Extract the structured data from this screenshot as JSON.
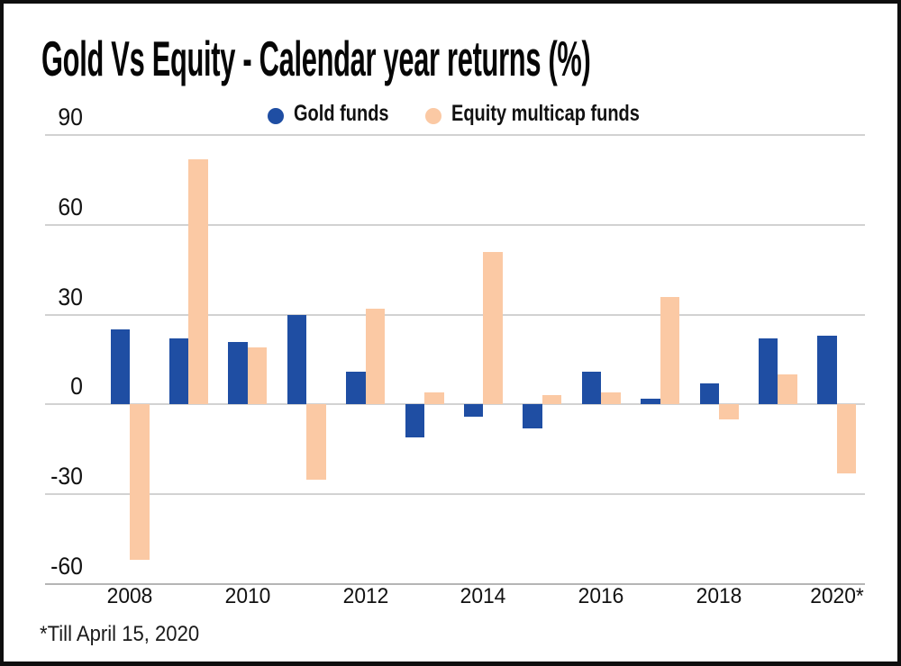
{
  "header": {
    "title": "Gold Vs Equity - Calendar year returns (%)"
  },
  "legend": [
    {
      "label": "Gold funds",
      "color": "#1f4ea3"
    },
    {
      "label": "Equity multicap funds",
      "color": "#fbc9a4"
    }
  ],
  "footer": {
    "note": "*Till April 15, 2020"
  },
  "chart_data": {
    "type": "bar",
    "title": "Gold Vs Equity - Calendar year returns (%)",
    "categories": [
      "2008",
      "2009",
      "2010",
      "2011",
      "2012",
      "2013",
      "2014",
      "2015",
      "2016",
      "2017",
      "2018",
      "2019",
      "2020"
    ],
    "series": [
      {
        "name": "Gold funds",
        "color": "#1f4ea3",
        "values": [
          25,
          22,
          21,
          30,
          11,
          -11,
          -4,
          -8,
          11,
          2,
          7,
          22,
          23
        ]
      },
      {
        "name": "Equity multicap funds",
        "color": "#fbc9a4",
        "values": [
          -52,
          82,
          19,
          -25,
          32,
          4,
          51,
          3,
          4,
          36,
          -5,
          10,
          -23
        ]
      }
    ],
    "xlabel": "",
    "ylabel": "",
    "x_tick_labels": [
      "2008",
      "2010",
      "2012",
      "2014",
      "2016",
      "2018",
      "2020*"
    ],
    "x_tick_step": 2,
    "y_ticks": [
      90,
      60,
      30,
      0,
      -30,
      -60
    ],
    "y_tick_labels": [
      "90",
      "60",
      "30",
      "0",
      "-30",
      "-60"
    ],
    "ylim": [
      -60,
      90
    ],
    "grid": "horizontal",
    "legend_position": "top",
    "footnote": "*Till April 15, 2020"
  }
}
